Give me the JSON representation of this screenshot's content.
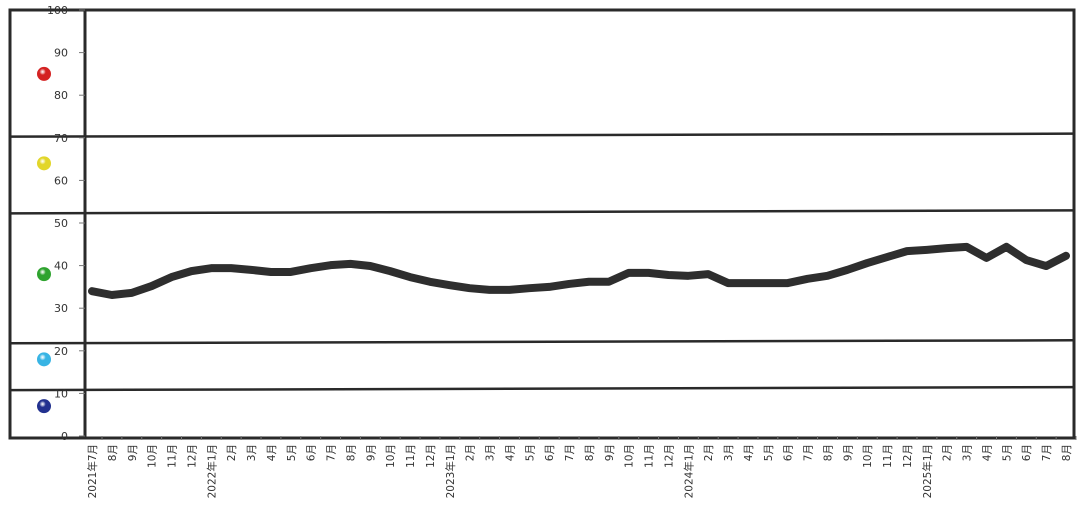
{
  "chart_data": {
    "type": "line",
    "title": "",
    "xlabel": "",
    "ylabel": "",
    "ylim": [
      0,
      100
    ],
    "y_ticks": [
      "0",
      "10",
      "20",
      "30",
      "40",
      "50",
      "60",
      "70",
      "80",
      "90",
      "100"
    ],
    "grid": false,
    "band_boundaries": [
      70.5,
      52.5,
      22,
      11
    ],
    "band_markers": [
      {
        "value": 85,
        "color": "#d42222"
      },
      {
        "value": 64,
        "color": "#e2d62a"
      },
      {
        "value": 38,
        "color": "#2ea32e"
      },
      {
        "value": 18,
        "color": "#38b4e4"
      },
      {
        "value": 7,
        "color": "#22318f"
      }
    ],
    "line_color": "#2e2e2e",
    "categories": [
      "2021年7月",
      "8月",
      "9月",
      "10月",
      "11月",
      "12月",
      "2022年1月",
      "2月",
      "3月",
      "4月",
      "5月",
      "6月",
      "7月",
      "8月",
      "9月",
      "10月",
      "11月",
      "12月",
      "2023年1月",
      "2月",
      "3月",
      "4月",
      "5月",
      "6月",
      "7月",
      "8月",
      "9月",
      "10月",
      "11月",
      "12月",
      "2024年1月",
      "2月",
      "3月",
      "4月",
      "5月",
      "6月",
      "7月",
      "8月",
      "9月",
      "10月",
      "11月",
      "12月",
      "2025年1月",
      "2月",
      "3月",
      "4月",
      "5月",
      "6月",
      "7月",
      "8月"
    ],
    "values": [
      34.0,
      33.1,
      33.6,
      35.2,
      37.3,
      38.7,
      39.4,
      39.4,
      39.0,
      38.5,
      38.5,
      39.4,
      40.1,
      40.4,
      39.9,
      38.7,
      37.3,
      36.2,
      35.4,
      34.7,
      34.3,
      34.3,
      34.7,
      35.0,
      35.7,
      36.2,
      36.2,
      38.3,
      38.3,
      37.8,
      37.6,
      38.0,
      35.9,
      35.9,
      35.9,
      35.9,
      36.9,
      37.6,
      39.0,
      40.6,
      42.0,
      43.4,
      43.7,
      44.1,
      44.4,
      41.8,
      44.4,
      41.3,
      39.9,
      42.3
    ]
  }
}
